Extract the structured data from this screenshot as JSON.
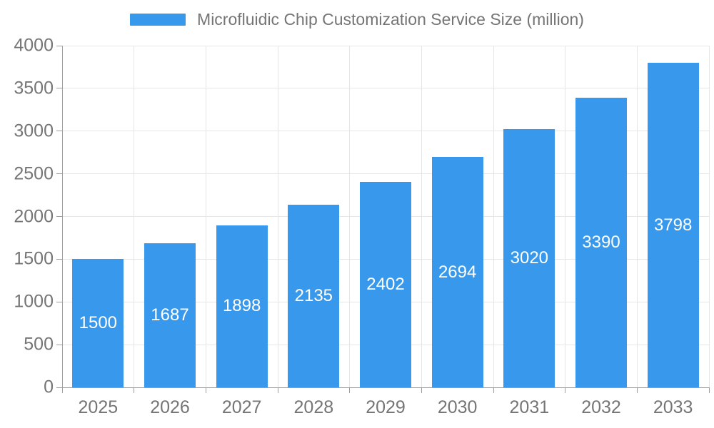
{
  "chart_data": {
    "type": "bar",
    "title": "Microfluidic Chip Customization Service Size (million)",
    "categories": [
      "2025",
      "2026",
      "2027",
      "2028",
      "2029",
      "2030",
      "2031",
      "2032",
      "2033"
    ],
    "values": [
      1500,
      1687,
      1898,
      2135,
      2402,
      2694,
      3020,
      3390,
      3798
    ],
    "xlabel": "",
    "ylabel": "",
    "ylim": [
      0,
      4000
    ],
    "ytick_step": 500,
    "ytick_labels": [
      "0",
      "500",
      "1000",
      "1500",
      "2000",
      "2500",
      "3000",
      "3500",
      "4000"
    ],
    "grid": true,
    "legend_position": "top",
    "value_labels_inside": true,
    "colors": {
      "bar": "#3898EC",
      "value_label": "#FFFFFF",
      "axis_label": "#757575",
      "legend_text": "#757575",
      "gridline": "#E6E6E6",
      "axis_line": "#9E9E9E",
      "background": "#FFFFFF"
    }
  },
  "legend": {
    "label": "Microfluidic Chip Customization Service Size (million)"
  }
}
